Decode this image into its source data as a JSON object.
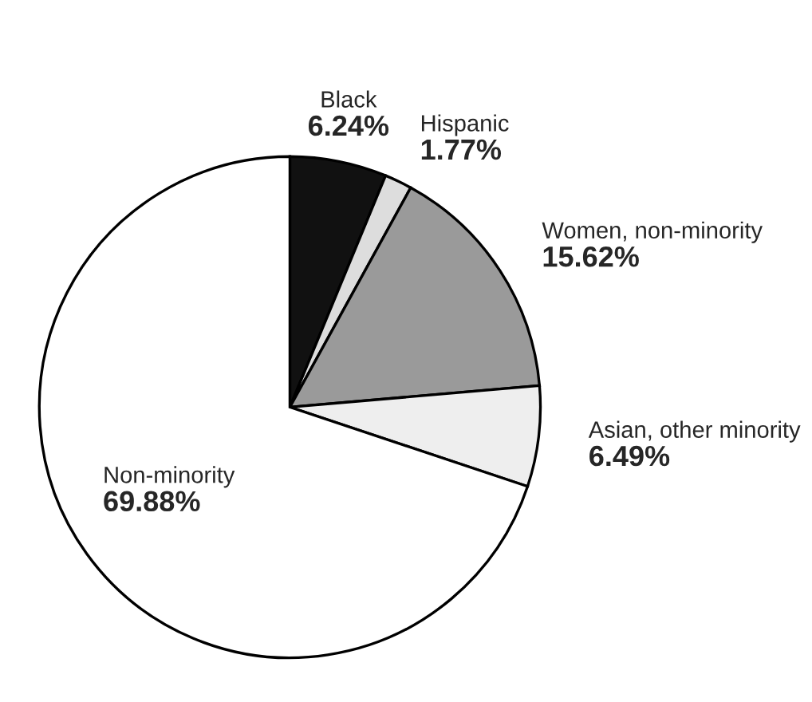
{
  "chart_data": {
    "type": "pie",
    "categories": [
      "Black",
      "Hispanic",
      "Women, non-minority",
      "Asian, other minority",
      "Non-minority"
    ],
    "values": [
      6.24,
      1.77,
      15.62,
      6.49,
      69.88
    ],
    "colors": [
      "#111111",
      "#dddddd",
      "#9a9a9a",
      "#eeeeee",
      "#ffffff"
    ],
    "value_labels": [
      "6.24%",
      "1.77%",
      "15.62%",
      "6.49%",
      "69.88%"
    ]
  }
}
